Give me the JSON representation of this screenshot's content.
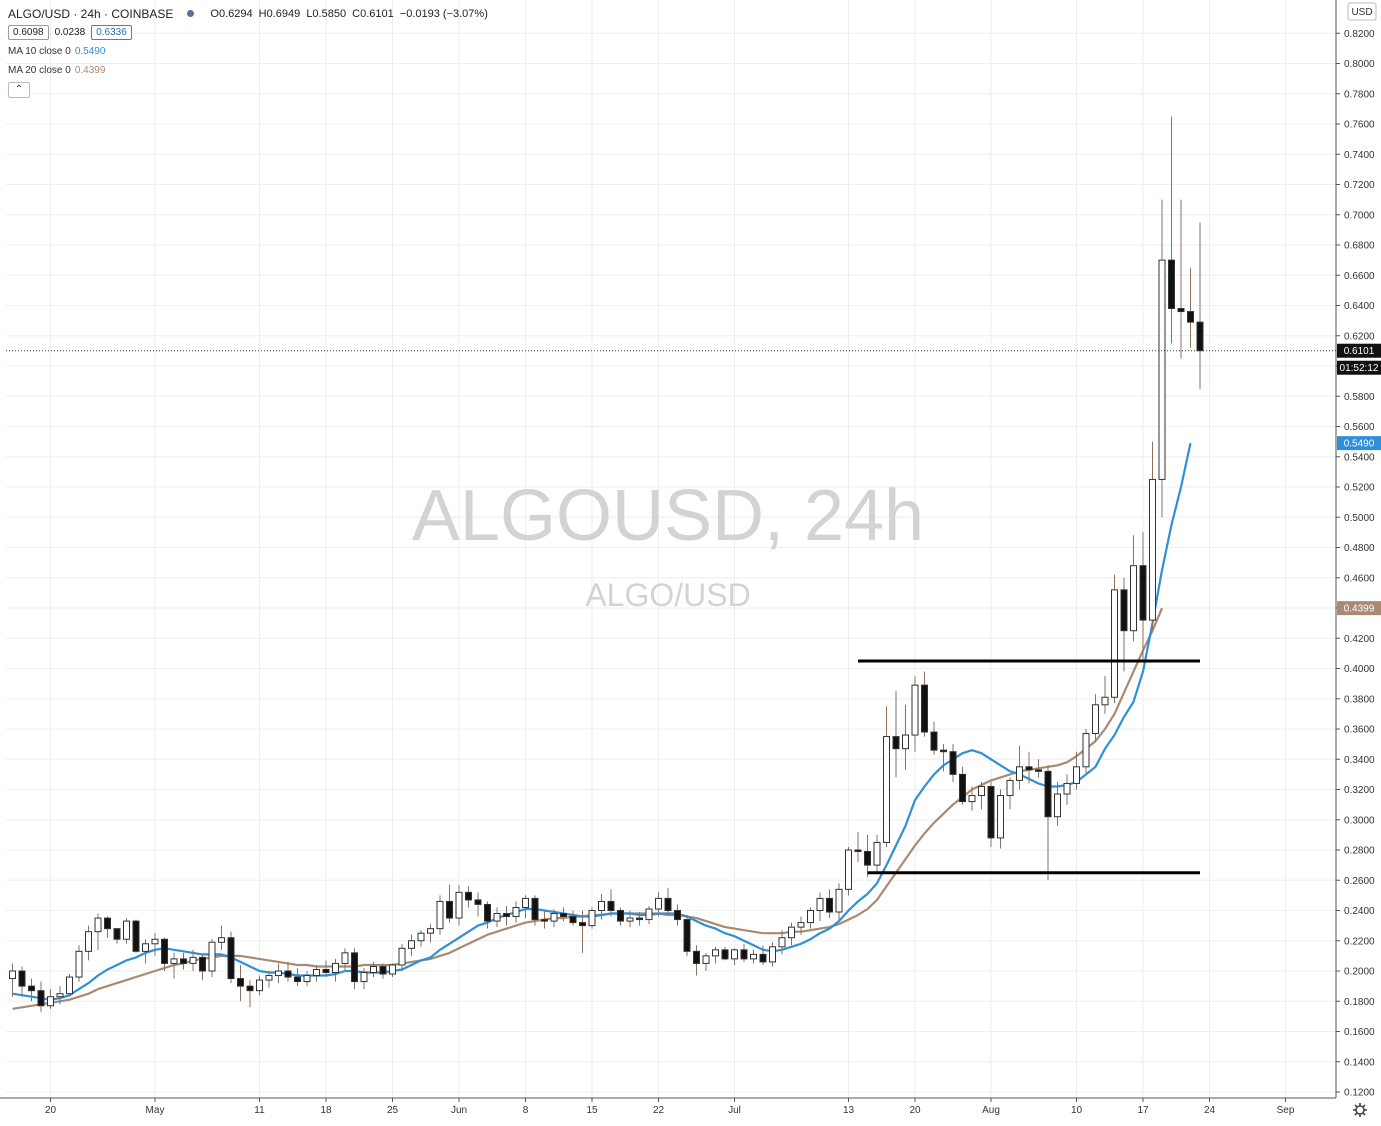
{
  "header": {
    "title": "ALGO/USD · 24h · COINBASE",
    "ohlc": {
      "open": "O0.6294",
      "high": "H0.6949",
      "low": "L0.5850",
      "close": "C0.6101",
      "change": "−0.0193 (−3.07%)"
    },
    "bid": "0.6098",
    "spread": "0.0238",
    "ask": "0.6336",
    "ma10_label": "MA 10 close 0",
    "ma10_value": "0.5490",
    "ma20_label": "MA 20 close 0",
    "ma20_value": "0.4399",
    "collapse_icon": "chevron-up-icon"
  },
  "watermark": {
    "main": "ALGOUSD, 24h",
    "sub": "ALGO/USD"
  },
  "axis": {
    "currency": "USD",
    "price_badge": "0.6101",
    "countdown_badge": "01:52:12",
    "ma10_badge": "0.5490",
    "ma20_badge": "0.4399",
    "settings_icon": "gear-icon"
  },
  "colors": {
    "ma10": "#2f8fd8",
    "ma20": "#a88a72",
    "up_fill": "#ffffff",
    "down_fill": "#111111",
    "candle_border": "#333333",
    "wick": "#8c7060",
    "grid": "#eeeeee",
    "level": "#000000"
  },
  "chart_data": {
    "type": "candlestick",
    "symbol": "ALGO/USD",
    "interval": "24h",
    "exchange": "COINBASE",
    "ylim": [
      0.11,
      0.83
    ],
    "y_ticks": [
      "0.1200",
      "0.1400",
      "0.1600",
      "0.1800",
      "0.2000",
      "0.2200",
      "0.2400",
      "0.2600",
      "0.2800",
      "0.3000",
      "0.3200",
      "0.3400",
      "0.3600",
      "0.3800",
      "0.4000",
      "0.4200",
      "0.4400",
      "0.4600",
      "0.4800",
      "0.5000",
      "0.5200",
      "0.5400",
      "0.5600",
      "0.5800",
      "0.6000",
      "0.6200",
      "0.6400",
      "0.6600",
      "0.6800",
      "0.7000",
      "0.7200",
      "0.7400",
      "0.7600",
      "0.7800",
      "0.8000",
      "0.8200"
    ],
    "x_ticks": [
      {
        "label": "20",
        "index": 4
      },
      {
        "label": "May",
        "index": 15
      },
      {
        "label": "11",
        "index": 26
      },
      {
        "label": "18",
        "index": 33
      },
      {
        "label": "25",
        "index": 40
      },
      {
        "label": "Jun",
        "index": 47
      },
      {
        "label": "8",
        "index": 54
      },
      {
        "label": "15",
        "index": 61
      },
      {
        "label": "22",
        "index": 68
      },
      {
        "label": "Jul",
        "index": 76
      },
      {
        "label": "13",
        "index": 88
      },
      {
        "label": "20",
        "index": 95
      },
      {
        "label": "Aug",
        "index": 103
      },
      {
        "label": "10",
        "index": 112
      },
      {
        "label": "17",
        "index": 119
      },
      {
        "label": "24",
        "index": 126
      },
      {
        "label": "Sep",
        "index": 134
      }
    ],
    "candles": [
      [
        0.195,
        0.205,
        0.183,
        0.2
      ],
      [
        0.2,
        0.203,
        0.183,
        0.19
      ],
      [
        0.19,
        0.195,
        0.18,
        0.187
      ],
      [
        0.187,
        0.193,
        0.173,
        0.177
      ],
      [
        0.177,
        0.188,
        0.175,
        0.183
      ],
      [
        0.183,
        0.19,
        0.178,
        0.185
      ],
      [
        0.185,
        0.198,
        0.183,
        0.196
      ],
      [
        0.196,
        0.217,
        0.193,
        0.213
      ],
      [
        0.213,
        0.23,
        0.207,
        0.226
      ],
      [
        0.226,
        0.238,
        0.214,
        0.235
      ],
      [
        0.235,
        0.236,
        0.222,
        0.228
      ],
      [
        0.228,
        0.225,
        0.218,
        0.221
      ],
      [
        0.221,
        0.235,
        0.218,
        0.233
      ],
      [
        0.233,
        0.234,
        0.212,
        0.213
      ],
      [
        0.213,
        0.221,
        0.205,
        0.218
      ],
      [
        0.218,
        0.225,
        0.21,
        0.221
      ],
      [
        0.221,
        0.222,
        0.2,
        0.205
      ],
      [
        0.205,
        0.212,
        0.195,
        0.208
      ],
      [
        0.208,
        0.212,
        0.201,
        0.205
      ],
      [
        0.205,
        0.214,
        0.2,
        0.209
      ],
      [
        0.209,
        0.211,
        0.194,
        0.2
      ],
      [
        0.2,
        0.221,
        0.196,
        0.219
      ],
      [
        0.219,
        0.23,
        0.214,
        0.222
      ],
      [
        0.222,
        0.226,
        0.192,
        0.195
      ],
      [
        0.195,
        0.204,
        0.18,
        0.19
      ],
      [
        0.19,
        0.194,
        0.176,
        0.187
      ],
      [
        0.187,
        0.197,
        0.184,
        0.194
      ],
      [
        0.194,
        0.2,
        0.189,
        0.197
      ],
      [
        0.197,
        0.205,
        0.192,
        0.2
      ],
      [
        0.2,
        0.206,
        0.193,
        0.196
      ],
      [
        0.196,
        0.202,
        0.19,
        0.193
      ],
      [
        0.193,
        0.2,
        0.19,
        0.197
      ],
      [
        0.197,
        0.204,
        0.193,
        0.201
      ],
      [
        0.201,
        0.207,
        0.196,
        0.199
      ],
      [
        0.199,
        0.208,
        0.193,
        0.205
      ],
      [
        0.205,
        0.215,
        0.2,
        0.212
      ],
      [
        0.212,
        0.215,
        0.188,
        0.193
      ],
      [
        0.193,
        0.202,
        0.188,
        0.199
      ],
      [
        0.199,
        0.206,
        0.196,
        0.203
      ],
      [
        0.203,
        0.205,
        0.195,
        0.198
      ],
      [
        0.198,
        0.205,
        0.196,
        0.204
      ],
      [
        0.204,
        0.218,
        0.2,
        0.215
      ],
      [
        0.215,
        0.224,
        0.21,
        0.22
      ],
      [
        0.22,
        0.227,
        0.216,
        0.225
      ],
      [
        0.225,
        0.231,
        0.219,
        0.228
      ],
      [
        0.228,
        0.25,
        0.224,
        0.246
      ],
      [
        0.246,
        0.257,
        0.232,
        0.235
      ],
      [
        0.235,
        0.257,
        0.23,
        0.252
      ],
      [
        0.252,
        0.256,
        0.242,
        0.247
      ],
      [
        0.247,
        0.252,
        0.236,
        0.244
      ],
      [
        0.244,
        0.246,
        0.228,
        0.233
      ],
      [
        0.233,
        0.242,
        0.229,
        0.238
      ],
      [
        0.238,
        0.243,
        0.23,
        0.236
      ],
      [
        0.236,
        0.246,
        0.232,
        0.242
      ],
      [
        0.242,
        0.25,
        0.235,
        0.248
      ],
      [
        0.248,
        0.25,
        0.23,
        0.234
      ],
      [
        0.234,
        0.24,
        0.228,
        0.233
      ],
      [
        0.233,
        0.241,
        0.229,
        0.238
      ],
      [
        0.238,
        0.242,
        0.233,
        0.236
      ],
      [
        0.236,
        0.24,
        0.23,
        0.232
      ],
      [
        0.232,
        0.24,
        0.212,
        0.23
      ],
      [
        0.23,
        0.242,
        0.228,
        0.24
      ],
      [
        0.24,
        0.251,
        0.234,
        0.246
      ],
      [
        0.246,
        0.254,
        0.236,
        0.24
      ],
      [
        0.24,
        0.242,
        0.23,
        0.233
      ],
      [
        0.233,
        0.24,
        0.229,
        0.235
      ],
      [
        0.235,
        0.239,
        0.23,
        0.234
      ],
      [
        0.234,
        0.243,
        0.231,
        0.241
      ],
      [
        0.241,
        0.252,
        0.236,
        0.248
      ],
      [
        0.248,
        0.255,
        0.237,
        0.24
      ],
      [
        0.24,
        0.244,
        0.23,
        0.234
      ],
      [
        0.234,
        0.237,
        0.21,
        0.213
      ],
      [
        0.213,
        0.217,
        0.197,
        0.205
      ],
      [
        0.205,
        0.212,
        0.2,
        0.21
      ],
      [
        0.21,
        0.216,
        0.205,
        0.214
      ],
      [
        0.214,
        0.216,
        0.207,
        0.208
      ],
      [
        0.208,
        0.215,
        0.204,
        0.214
      ],
      [
        0.214,
        0.218,
        0.206,
        0.208
      ],
      [
        0.208,
        0.214,
        0.205,
        0.211
      ],
      [
        0.211,
        0.217,
        0.204,
        0.206
      ],
      [
        0.206,
        0.219,
        0.203,
        0.216
      ],
      [
        0.216,
        0.227,
        0.211,
        0.222
      ],
      [
        0.222,
        0.232,
        0.217,
        0.229
      ],
      [
        0.229,
        0.236,
        0.224,
        0.232
      ],
      [
        0.232,
        0.242,
        0.228,
        0.24
      ],
      [
        0.24,
        0.252,
        0.233,
        0.248
      ],
      [
        0.248,
        0.254,
        0.235,
        0.239
      ],
      [
        0.239,
        0.258,
        0.234,
        0.254
      ],
      [
        0.254,
        0.282,
        0.25,
        0.28
      ],
      [
        0.28,
        0.292,
        0.272,
        0.279
      ],
      [
        0.279,
        0.29,
        0.262,
        0.27
      ],
      [
        0.27,
        0.29,
        0.265,
        0.285
      ],
      [
        0.285,
        0.375,
        0.282,
        0.355
      ],
      [
        0.355,
        0.385,
        0.328,
        0.347
      ],
      [
        0.347,
        0.376,
        0.333,
        0.356
      ],
      [
        0.356,
        0.395,
        0.345,
        0.389
      ],
      [
        0.389,
        0.398,
        0.355,
        0.358
      ],
      [
        0.358,
        0.365,
        0.343,
        0.346
      ],
      [
        0.346,
        0.35,
        0.332,
        0.345
      ],
      [
        0.345,
        0.35,
        0.325,
        0.33
      ],
      [
        0.33,
        0.335,
        0.31,
        0.312
      ],
      [
        0.312,
        0.322,
        0.306,
        0.316
      ],
      [
        0.316,
        0.325,
        0.307,
        0.322
      ],
      [
        0.322,
        0.325,
        0.282,
        0.288
      ],
      [
        0.288,
        0.32,
        0.281,
        0.316
      ],
      [
        0.316,
        0.328,
        0.307,
        0.326
      ],
      [
        0.326,
        0.349,
        0.32,
        0.335
      ],
      [
        0.335,
        0.345,
        0.324,
        0.333
      ],
      [
        0.333,
        0.34,
        0.328,
        0.332
      ],
      [
        0.332,
        0.336,
        0.26,
        0.302
      ],
      [
        0.302,
        0.325,
        0.296,
        0.317
      ],
      [
        0.317,
        0.33,
        0.31,
        0.324
      ],
      [
        0.324,
        0.345,
        0.32,
        0.335
      ],
      [
        0.335,
        0.36,
        0.331,
        0.357
      ],
      [
        0.357,
        0.383,
        0.352,
        0.376
      ],
      [
        0.376,
        0.395,
        0.37,
        0.381
      ],
      [
        0.381,
        0.462,
        0.377,
        0.452
      ],
      [
        0.452,
        0.46,
        0.398,
        0.425
      ],
      [
        0.425,
        0.488,
        0.418,
        0.468
      ],
      [
        0.468,
        0.49,
        0.404,
        0.432
      ],
      [
        0.432,
        0.55,
        0.426,
        0.525
      ],
      [
        0.525,
        0.71,
        0.5,
        0.67
      ],
      [
        0.67,
        0.765,
        0.615,
        0.638
      ],
      [
        0.638,
        0.71,
        0.605,
        0.636
      ],
      [
        0.636,
        0.665,
        0.612,
        0.629
      ],
      [
        0.629,
        0.6949,
        0.585,
        0.6101
      ]
    ],
    "ma10": [
      0.185,
      0.184,
      0.183,
      0.182,
      0.181,
      0.182,
      0.184,
      0.188,
      0.192,
      0.197,
      0.201,
      0.204,
      0.207,
      0.209,
      0.212,
      0.214,
      0.215,
      0.214,
      0.213,
      0.212,
      0.211,
      0.211,
      0.211,
      0.209,
      0.206,
      0.203,
      0.2,
      0.199,
      0.199,
      0.198,
      0.197,
      0.197,
      0.197,
      0.197,
      0.198,
      0.2,
      0.2,
      0.199,
      0.199,
      0.199,
      0.2,
      0.201,
      0.204,
      0.207,
      0.209,
      0.214,
      0.218,
      0.222,
      0.226,
      0.23,
      0.232,
      0.235,
      0.237,
      0.239,
      0.241,
      0.241,
      0.24,
      0.239,
      0.238,
      0.237,
      0.236,
      0.236,
      0.237,
      0.238,
      0.238,
      0.238,
      0.237,
      0.237,
      0.238,
      0.238,
      0.238,
      0.236,
      0.233,
      0.23,
      0.228,
      0.225,
      0.223,
      0.22,
      0.217,
      0.214,
      0.213,
      0.214,
      0.216,
      0.218,
      0.221,
      0.225,
      0.228,
      0.233,
      0.24,
      0.246,
      0.251,
      0.258,
      0.27,
      0.283,
      0.296,
      0.313,
      0.322,
      0.33,
      0.336,
      0.34,
      0.344,
      0.346,
      0.344,
      0.34,
      0.336,
      0.332,
      0.33,
      0.327,
      0.324,
      0.322,
      0.322,
      0.323,
      0.325,
      0.33,
      0.335,
      0.347,
      0.356,
      0.368,
      0.378,
      0.398,
      0.43,
      0.465,
      0.495,
      0.52,
      0.549
    ],
    "ma20": [
      0.175,
      0.176,
      0.177,
      0.178,
      0.179,
      0.18,
      0.181,
      0.183,
      0.185,
      0.188,
      0.19,
      0.192,
      0.194,
      0.196,
      0.198,
      0.2,
      0.202,
      0.204,
      0.205,
      0.207,
      0.208,
      0.209,
      0.21,
      0.21,
      0.21,
      0.209,
      0.208,
      0.207,
      0.206,
      0.205,
      0.204,
      0.204,
      0.203,
      0.203,
      0.203,
      0.203,
      0.203,
      0.204,
      0.204,
      0.204,
      0.204,
      0.205,
      0.206,
      0.207,
      0.208,
      0.21,
      0.212,
      0.215,
      0.218,
      0.221,
      0.224,
      0.226,
      0.228,
      0.23,
      0.232,
      0.233,
      0.234,
      0.235,
      0.235,
      0.236,
      0.236,
      0.237,
      0.237,
      0.238,
      0.238,
      0.238,
      0.238,
      0.238,
      0.238,
      0.237,
      0.237,
      0.236,
      0.235,
      0.233,
      0.231,
      0.229,
      0.228,
      0.227,
      0.226,
      0.225,
      0.225,
      0.225,
      0.226,
      0.226,
      0.227,
      0.228,
      0.229,
      0.231,
      0.234,
      0.237,
      0.241,
      0.247,
      0.256,
      0.265,
      0.274,
      0.283,
      0.291,
      0.298,
      0.304,
      0.31,
      0.315,
      0.32,
      0.323,
      0.326,
      0.328,
      0.33,
      0.332,
      0.333,
      0.334,
      0.335,
      0.336,
      0.338,
      0.342,
      0.347,
      0.352,
      0.36,
      0.37,
      0.384,
      0.398,
      0.412,
      0.425,
      0.4399
    ],
    "levels": [
      {
        "price": 0.405,
        "from_index": 89,
        "to_index": 125
      },
      {
        "price": 0.265,
        "from_index": 90,
        "to_index": 125
      }
    ],
    "last_price": 0.6101
  }
}
